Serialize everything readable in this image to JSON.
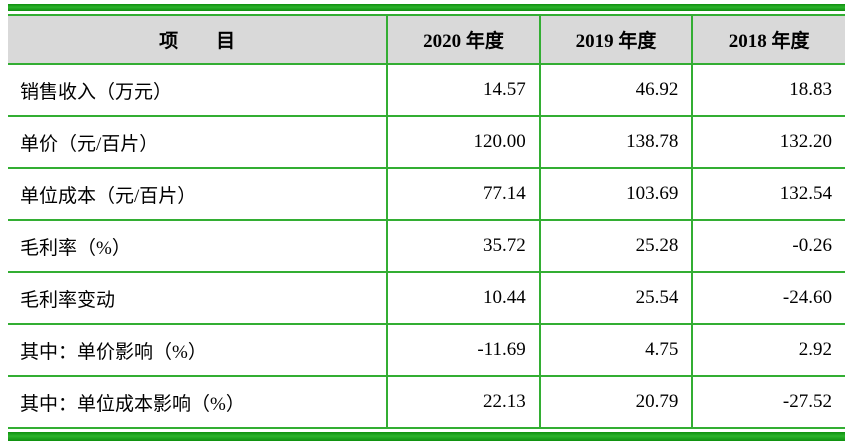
{
  "table": {
    "columns": [
      {
        "label": "项　　目"
      },
      {
        "label": "2020 年度"
      },
      {
        "label": "2019 年度"
      },
      {
        "label": "2018 年度"
      }
    ],
    "rows": [
      {
        "label": "销售收入（万元）",
        "values": [
          "14.57",
          "46.92",
          "18.83"
        ]
      },
      {
        "label": "单价（元/百片）",
        "values": [
          "120.00",
          "138.78",
          "132.20"
        ]
      },
      {
        "label": "单位成本（元/百片）",
        "values": [
          "77.14",
          "103.69",
          "132.54"
        ]
      },
      {
        "label": "毛利率（%）",
        "values": [
          "35.72",
          "25.28",
          "-0.26"
        ]
      },
      {
        "label": "毛利率变动",
        "values": [
          "10.44",
          "25.54",
          "-24.60"
        ]
      },
      {
        "label": "其中：单价影响（%）",
        "values": [
          "-11.69",
          "4.75",
          "2.92"
        ]
      },
      {
        "label": "其中：单位成本影响（%）",
        "values": [
          "22.13",
          "20.79",
          "-27.52"
        ]
      }
    ],
    "colors": {
      "border_thin_green": "#33ae33",
      "border_thick_green": "#0e8f0e",
      "header_background": "#d9d9d9",
      "text": "#000000"
    },
    "layout": {
      "first_column_width_pct": 45.3,
      "value_column_width_pct": 18.23
    }
  }
}
